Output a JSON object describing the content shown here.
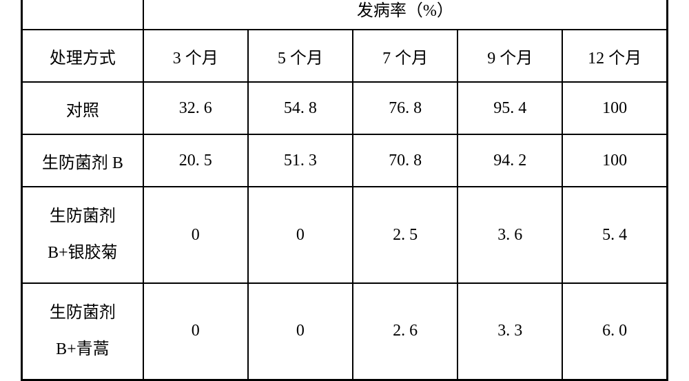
{
  "table": {
    "group_header": "发病率（%）",
    "col_headers": [
      "处理方式",
      "3 个月",
      "5 个月",
      "7 个月",
      "9 个月",
      "12 个月"
    ],
    "rows": [
      {
        "label": "对照",
        "values": [
          "32. 6",
          "54. 8",
          "76. 8",
          "95. 4",
          "100"
        ]
      },
      {
        "label": "生防菌剂 B",
        "values": [
          "20. 5",
          "51. 3",
          "70. 8",
          "94. 2",
          "100"
        ]
      },
      {
        "label_line1": "生防菌剂",
        "label_line2": "B+银胶菊",
        "values": [
          "0",
          "0",
          "2. 5",
          "3. 6",
          "5. 4"
        ]
      },
      {
        "label_line1": "生防菌剂",
        "label_line2": "B+青蒿",
        "values": [
          "0",
          "0",
          "2. 6",
          "3. 3",
          "6. 0"
        ]
      }
    ]
  },
  "style": {
    "font_size": 24,
    "border_color": "#000000",
    "outer_border_width": 3,
    "inner_border_width": 2,
    "background_color": "#ffffff",
    "text_color": "#000000",
    "col_first_width": 176,
    "col_data_width": 152,
    "row_header1_height": 62,
    "row_header2_height": 76,
    "row_data_height": 76,
    "row_tall_height": 140
  }
}
